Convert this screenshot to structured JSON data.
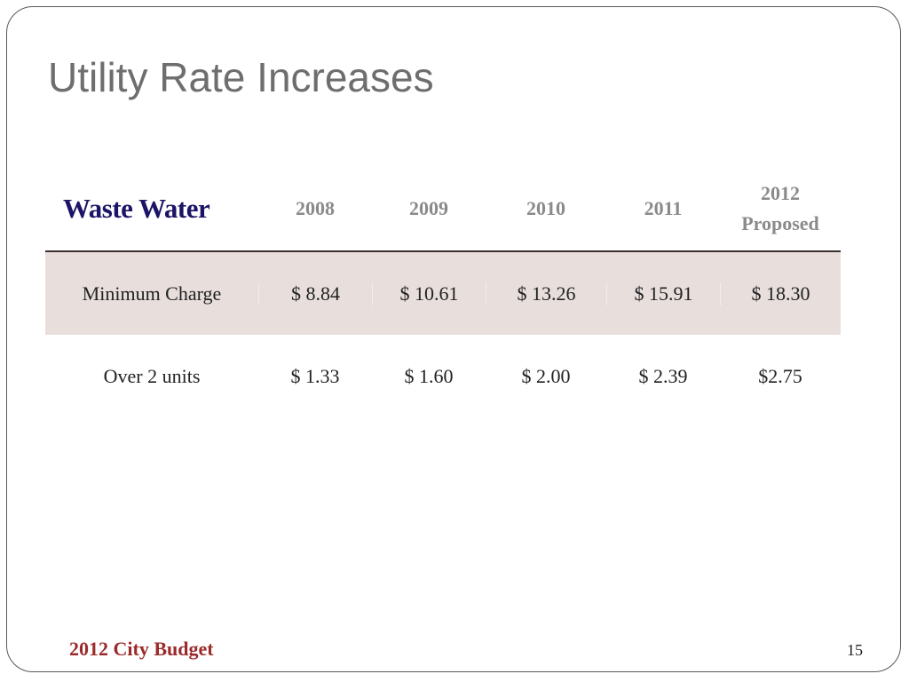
{
  "slide": {
    "title": "Utility Rate Increases",
    "footer_left": "2012 City Budget",
    "page_number": "15"
  },
  "table": {
    "header": {
      "title": "Waste Water",
      "years": [
        "2008",
        "2009",
        "2010",
        "2011",
        "2012"
      ],
      "last_year_note": "Proposed"
    },
    "rows": [
      {
        "label": "Minimum Charge",
        "values": [
          "$ 8.84",
          "$ 10.61",
          "$ 13.26",
          "$ 15.91",
          "$ 18.30"
        ]
      },
      {
        "label": "Over 2 units",
        "values": [
          "$ 1.33",
          "$ 1.60",
          "$ 2.00",
          "$ 2.39",
          "$2.75"
        ]
      }
    ]
  },
  "colors": {
    "title": "#6e6e6e",
    "table_title": "#1c1466",
    "highlight_row": "#e8dfdd",
    "footer": "#9b2b2b"
  }
}
